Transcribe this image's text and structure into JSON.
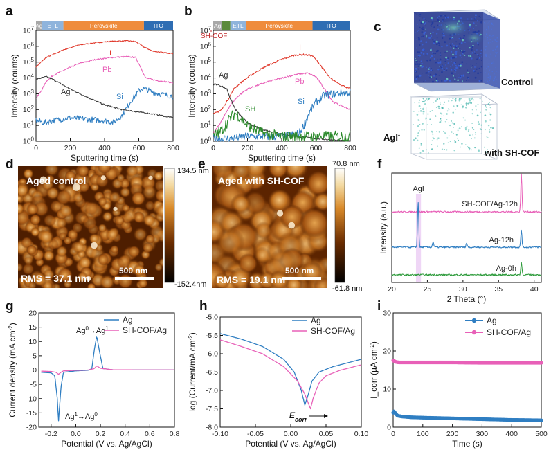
{
  "panel_labels": {
    "a": "a",
    "b": "b",
    "c": "c",
    "d": "d",
    "e": "e",
    "f": "f",
    "g": "g",
    "h": "h",
    "i": "i"
  },
  "layer_bars": {
    "a": [
      {
        "label": "Ag",
        "color": "#a8a8a8",
        "from": 0,
        "to": 35
      },
      {
        "label": "ETL",
        "color": "#8fb4dc",
        "from": 35,
        "to": 160
      },
      {
        "label": "Perovskite",
        "color": "#ef8c3c",
        "from": 160,
        "to": 630
      },
      {
        "label": "ITO",
        "color": "#2e6db3",
        "from": 630,
        "to": 800
      }
    ],
    "b": [
      {
        "label": "Ag",
        "color": "#a8a8a8",
        "from": 0,
        "to": 50
      },
      {
        "label": "",
        "color": "#5b8a3a",
        "from": 50,
        "to": 100
      },
      {
        "label": "ETL",
        "color": "#8fb4dc",
        "from": 100,
        "to": 190
      },
      {
        "label": "Perovskite",
        "color": "#ef8c3c",
        "from": 190,
        "to": 580
      },
      {
        "label": "ITO",
        "color": "#2e6db3",
        "from": 580,
        "to": 800
      }
    ]
  },
  "annotations": {
    "sh_cof": "SH-COF",
    "agi_xrd": "AgI",
    "ag0_ag1": "Ag",
    "ag1_ag0": "Ag",
    "ecorr": "E",
    "ecorr_sub": "corr"
  },
  "panel_c": {
    "control_label": "Control",
    "agi_label": "AgI",
    "agi_sup": "-",
    "with_label": "with SH-COF"
  },
  "panel_d": {
    "title": "Aged control",
    "scale": "500 nm",
    "rms": "RMS = 37.1 nm",
    "cmax": "134.5 nm",
    "cmin": "-152.4nm"
  },
  "panel_e": {
    "title": "Aged with SH-COF",
    "scale": "500 nm",
    "rms": "RMS = 19.1 nm",
    "cmax": "70.8 nm",
    "cmin": "-61.8 nm"
  },
  "colors": {
    "I": "#e0382b",
    "Pb": "#e860b8",
    "Ag": "#3a3a3a",
    "Si": "#2f7ec2",
    "SH": "#2c8a2c",
    "ag_curve": "#2f7ec2",
    "cof_curve": "#e860b8",
    "xrd_green": "#2c9a3a"
  },
  "chart_data": [
    {
      "id": "a",
      "type": "line",
      "xlabel": "Sputtering time (s)",
      "ylabel": "Intensity (counts)",
      "xlim": [
        0,
        800
      ],
      "ylim_log10": [
        0,
        7
      ],
      "xticks": [
        "0",
        "200",
        "400",
        "600",
        "800"
      ],
      "yticks": [
        "10^0",
        "10^1",
        "10^2",
        "10^3",
        "10^4",
        "10^5",
        "10^6",
        "10^7"
      ],
      "series": [
        {
          "name": "I",
          "x": [
            0,
            30,
            60,
            100,
            160,
            250,
            350,
            450,
            530,
            580,
            630,
            680,
            740,
            800
          ],
          "y": [
            50000,
            100000,
            200000,
            300000,
            600000,
            1200000,
            1700000,
            2100000,
            2200000,
            2000000,
            900000,
            500000,
            400000,
            350000
          ]
        },
        {
          "name": "Pb",
          "x": [
            0,
            30,
            60,
            100,
            160,
            250,
            350,
            450,
            530,
            580,
            610,
            640,
            700,
            800
          ],
          "y": [
            500,
            1500,
            6000,
            15000,
            30000,
            80000,
            150000,
            200000,
            220000,
            200000,
            50000,
            10000,
            7000,
            5000
          ]
        },
        {
          "name": "Ag",
          "x": [
            0,
            30,
            60,
            100,
            150,
            200,
            300,
            400,
            500,
            600,
            700,
            800
          ],
          "y": [
            8000,
            10000,
            12000,
            8000,
            4000,
            2000,
            600,
            200,
            100,
            70,
            50,
            30
          ]
        },
        {
          "name": "Si",
          "x": [
            0,
            50,
            100,
            150,
            200,
            300,
            400,
            450,
            500,
            550,
            600,
            620,
            680,
            740,
            800
          ],
          "y": [
            20,
            15,
            20,
            25,
            30,
            25,
            20,
            15,
            40,
            300,
            1500,
            2200,
            1300,
            900,
            700
          ]
        }
      ]
    },
    {
      "id": "b",
      "type": "line",
      "xlabel": "Sputtering time (s)",
      "ylabel": "Intensity (counts)",
      "xlim": [
        0,
        800
      ],
      "ylim_log10": [
        0,
        7
      ],
      "xticks": [
        "0",
        "200",
        "400",
        "600",
        "800"
      ],
      "yticks": [
        "10^0",
        "10^1",
        "10^2",
        "10^3",
        "10^4",
        "10^5",
        "10^6",
        "10^7"
      ],
      "series": [
        {
          "name": "I",
          "x": [
            0,
            50,
            90,
            120,
            160,
            220,
            300,
            400,
            480,
            530,
            580,
            620,
            680,
            740,
            800
          ],
          "y": [
            50,
            100,
            500,
            2000,
            5000,
            15000,
            50000,
            150000,
            280000,
            300000,
            250000,
            80000,
            10000,
            4000,
            2000
          ]
        },
        {
          "name": "Pb",
          "x": [
            0,
            50,
            100,
            150,
            200,
            300,
            400,
            500,
            550,
            600,
            650,
            700,
            800
          ],
          "y": [
            3,
            20,
            200,
            800,
            2000,
            5000,
            10000,
            18000,
            20000,
            12000,
            2000,
            300,
            100
          ]
        },
        {
          "name": "Ag",
          "x": [
            0,
            20,
            50,
            80,
            100,
            130,
            170,
            220,
            300,
            400,
            500,
            600,
            700,
            800
          ],
          "y": [
            4000,
            4000,
            3000,
            2000,
            500,
            100,
            30,
            10,
            5,
            3,
            2,
            1.5,
            1.2,
            1
          ]
        },
        {
          "name": "Si",
          "x": [
            0,
            100,
            200,
            300,
            400,
            500,
            530,
            560,
            600,
            650,
            700,
            750,
            800
          ],
          "y": [
            1.5,
            1.5,
            2,
            2,
            2,
            3,
            10,
            60,
            300,
            800,
            1000,
            1100,
            1200
          ]
        },
        {
          "name": "SH",
          "x": [
            0,
            50,
            100,
            130,
            160,
            200,
            250,
            300,
            400,
            500,
            600,
            700,
            800
          ],
          "y": [
            2,
            5,
            30,
            60,
            30,
            10,
            5,
            3,
            2,
            2,
            2,
            2,
            2
          ]
        }
      ]
    },
    {
      "id": "f",
      "type": "line",
      "xlabel": "2 Theta (°)",
      "ylabel": "Intensity (a.u.)",
      "xlim": [
        20,
        41
      ],
      "xticks": [
        "20",
        "25",
        "30",
        "35",
        "40"
      ],
      "series": [
        {
          "name": "SH-COF/Ag-12h",
          "peaks": [
            [
              38.2,
              55
            ]
          ],
          "offset": 2
        },
        {
          "name": "Ag-12h",
          "peaks": [
            [
              23.7,
              65
            ],
            [
              25.8,
              8
            ],
            [
              30.5,
              6
            ],
            [
              38.2,
              25
            ]
          ],
          "offset": 1
        },
        {
          "name": "Ag-0h",
          "peaks": [
            [
              38.2,
              18
            ]
          ],
          "offset": 0
        }
      ]
    },
    {
      "id": "g",
      "type": "line",
      "xlabel": "Potential (V vs. Ag/AgCl)",
      "ylabel": "Current density (mA cm^-2)",
      "xlim": [
        -0.3,
        0.8
      ],
      "ylim": [
        -20,
        20
      ],
      "xticks": [
        "-0.2",
        "0.0",
        "0.2",
        "0.4",
        "0.6",
        "0.8"
      ],
      "yticks": [
        "-20",
        "-15",
        "-10",
        "-5",
        "0",
        "5",
        "10",
        "15",
        "20"
      ],
      "series": [
        {
          "name": "Ag",
          "x": [
            -0.28,
            -0.2,
            -0.17,
            -0.15,
            -0.14,
            -0.12,
            -0.1,
            0,
            0.1,
            0.13,
            0.15,
            0.17,
            0.19,
            0.22,
            0.3,
            0.5,
            0.8
          ],
          "y": [
            -0.8,
            -1,
            -2,
            -10,
            -18,
            -6,
            -0.8,
            -0.3,
            -0.1,
            0.5,
            7,
            12,
            7,
            0.5,
            0.1,
            0.05,
            0.05
          ]
        },
        {
          "name": "SH-COF/Ag",
          "x": [
            -0.28,
            -0.2,
            -0.16,
            -0.14,
            -0.12,
            -0.1,
            0,
            0.1,
            0.15,
            0.17,
            0.2,
            0.3,
            0.5,
            0.8
          ],
          "y": [
            -0.4,
            -0.5,
            -0.8,
            -1.5,
            -0.8,
            -0.3,
            -0.1,
            0,
            0.5,
            1.5,
            0.6,
            0.1,
            0.05,
            0.05
          ]
        }
      ]
    },
    {
      "id": "h",
      "type": "line",
      "xlabel": "Potential (V vs. Ag/AgCl)",
      "ylabel": "log (Current/mA cm^-2)",
      "xlim": [
        -0.1,
        0.1
      ],
      "ylim": [
        -8,
        -5
      ],
      "xticks": [
        "-0.10",
        "-0.05",
        "0.00",
        "0.05",
        "0.10"
      ],
      "yticks": [
        "-8.0",
        "-7.5",
        "-7.0",
        "-6.5",
        "-6.0",
        "-5.5",
        "-5.0"
      ],
      "series": [
        {
          "name": "Ag",
          "x": [
            -0.1,
            -0.07,
            -0.04,
            -0.01,
            0.005,
            0.015,
            0.02,
            0.025,
            0.03,
            0.04,
            0.06,
            0.08,
            0.1
          ],
          "y": [
            -5.45,
            -5.6,
            -5.8,
            -6.15,
            -6.5,
            -7.0,
            -7.4,
            -7.1,
            -6.75,
            -6.5,
            -6.35,
            -6.25,
            -6.15
          ]
        },
        {
          "name": "SH-COF/Ag",
          "x": [
            -0.1,
            -0.07,
            -0.04,
            -0.01,
            0.01,
            0.02,
            0.028,
            0.032,
            0.04,
            0.05,
            0.07,
            0.1
          ],
          "y": [
            -5.62,
            -5.8,
            -6.0,
            -6.35,
            -6.75,
            -7.1,
            -7.5,
            -7.2,
            -6.8,
            -6.6,
            -6.45,
            -6.3
          ]
        }
      ]
    },
    {
      "id": "i",
      "type": "line",
      "xlabel": "Time (s)",
      "ylabel": "I_corr (µA cm^-2)",
      "xlim": [
        0,
        500
      ],
      "ylim": [
        0,
        30
      ],
      "xticks": [
        "0",
        "100",
        "200",
        "300",
        "400",
        "500"
      ],
      "yticks": [
        "0",
        "10",
        "20",
        "30"
      ],
      "series": [
        {
          "name": "Ag",
          "x": [
            0,
            3,
            8,
            15,
            30,
            60,
            100,
            200,
            300,
            400,
            500
          ],
          "y": [
            3.8,
            4.2,
            3.6,
            3.0,
            2.8,
            2.6,
            2.5,
            2.3,
            2.1,
            1.9,
            1.8
          ]
        },
        {
          "name": "SH-COF/Ag",
          "x": [
            0,
            5,
            10,
            20,
            50,
            100,
            200,
            300,
            400,
            500
          ],
          "y": [
            17.5,
            17.3,
            17.1,
            17.0,
            17.0,
            17.0,
            17.0,
            16.9,
            16.9,
            16.9
          ]
        }
      ]
    }
  ]
}
